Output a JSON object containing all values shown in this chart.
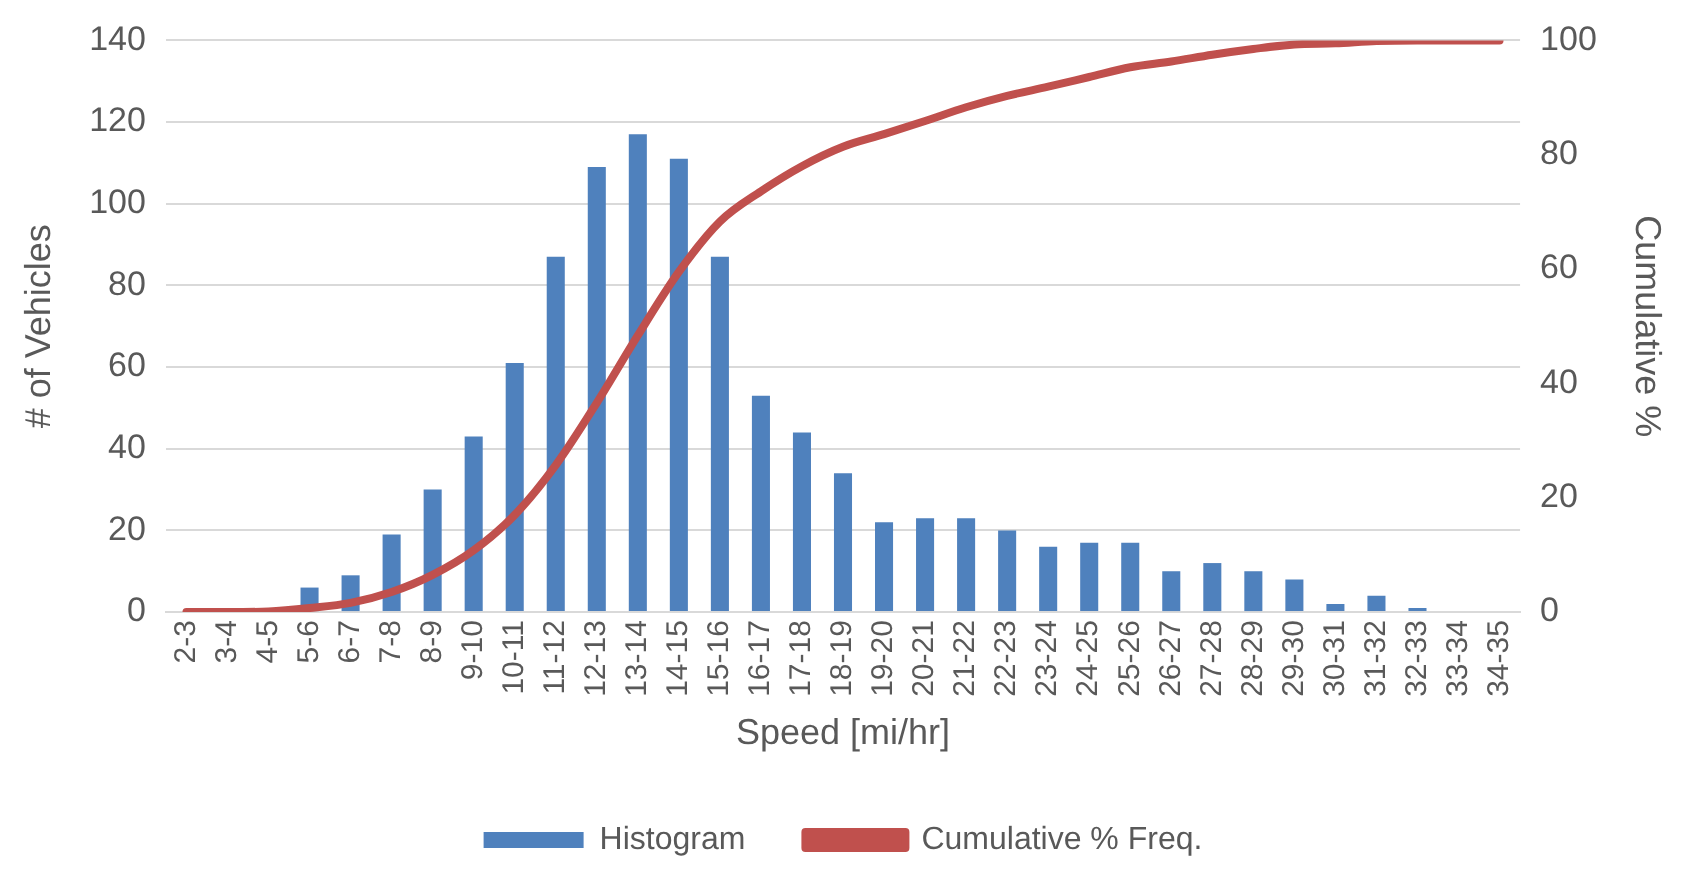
{
  "chart_data": {
    "type": "bar",
    "xlabel": "Speed [mi/hr]",
    "ylabel": "# of Vehicles",
    "y2label": "Cumulative %",
    "categories": [
      "2-3",
      "3-4",
      "4-5",
      "5-6",
      "6-7",
      "7-8",
      "8-9",
      "9-10",
      "10-11",
      "11-12",
      "12-13",
      "13-14",
      "14-15",
      "15-16",
      "16-17",
      "17-18",
      "18-19",
      "19-20",
      "20-21",
      "21-22",
      "22-23",
      "23-24",
      "24-25",
      "25-26",
      "26-27",
      "27-28",
      "28-29",
      "29-30",
      "30-31",
      "31-32",
      "32-33",
      "33-34",
      "34-35"
    ],
    "series": [
      {
        "name": "Histogram",
        "color": "#4f81bd",
        "values": [
          0,
          0,
          null,
          6,
          9,
          19,
          30,
          43,
          61,
          87,
          109,
          117,
          111,
          87,
          53,
          44,
          34,
          22,
          23,
          23,
          20,
          16,
          17,
          17,
          10,
          12,
          10,
          8,
          2,
          4,
          1,
          0,
          0
        ]
      },
      {
        "name": "Cumulative % Freq.",
        "type": "line",
        "axis": "y2",
        "color": "#c0504d",
        "values": [
          0,
          0,
          0.1,
          0.7,
          1.6,
          3.5,
          6.5,
          10.8,
          17,
          25.7,
          36.6,
          48.4,
          59.5,
          68.3,
          73.6,
          78,
          81.4,
          83.6,
          85.9,
          88.3,
          90.3,
          91.9,
          93.6,
          95.3,
          96.3,
          97.5,
          98.5,
          99.3,
          99.5,
          99.9,
          100,
          100,
          100
        ]
      }
    ],
    "ylim": [
      0,
      140
    ],
    "yticks": [
      0,
      20,
      40,
      60,
      80,
      100,
      120,
      140
    ],
    "y2lim": [
      0,
      100
    ],
    "y2ticks": [
      0,
      20,
      40,
      60,
      80,
      100
    ],
    "grid": "y",
    "legend": "bottom",
    "marker": "none",
    "line_style": "solid"
  }
}
